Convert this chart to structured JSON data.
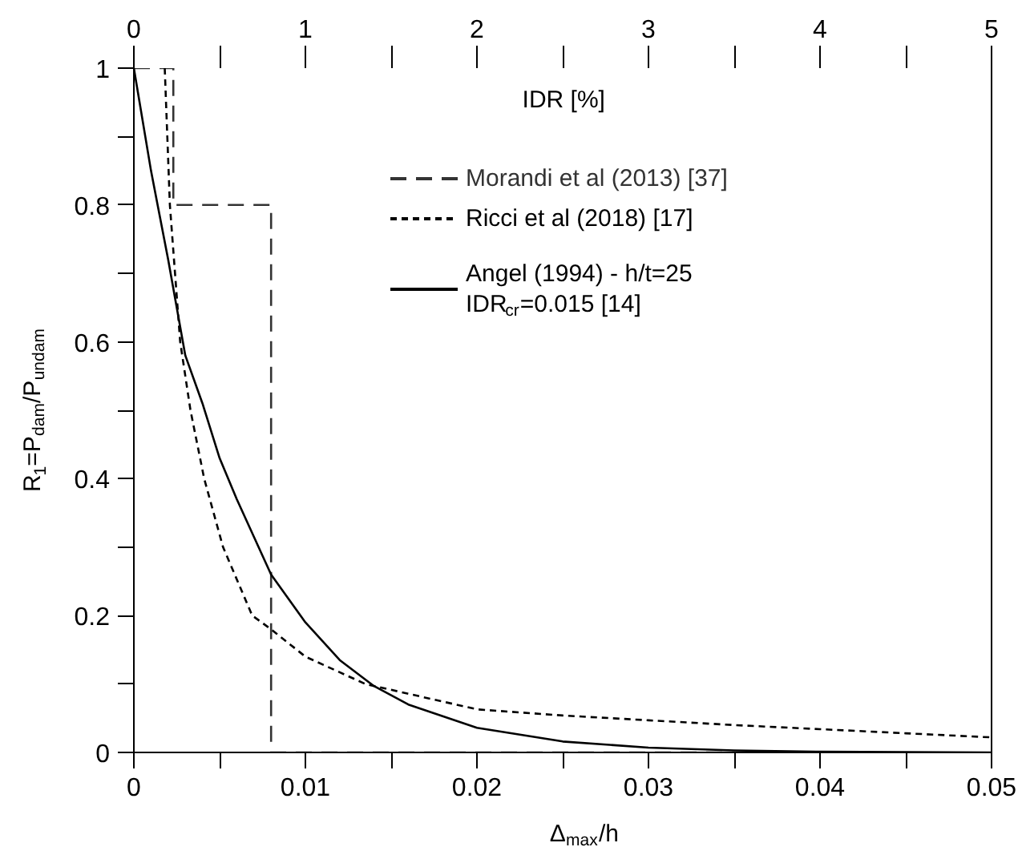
{
  "chart_data": {
    "type": "line",
    "xlabel": "Δ$_{max}$/h",
    "ylabel": "R$_{1}$=P$_{dam}$/P$_{undam}$",
    "x2label": "IDR [%]",
    "xlim": [
      0,
      0.05
    ],
    "ylim": [
      0,
      1
    ],
    "x2lim": [
      0,
      5
    ],
    "xticks": [
      0,
      {
        "value": 0.005,
        "label": null
      },
      0.01,
      {
        "value": 0.015,
        "label": null
      },
      0.02,
      {
        "value": 0.025,
        "label": null
      },
      0.03,
      {
        "value": 0.035,
        "label": null
      },
      0.04,
      {
        "value": 0.045,
        "label": null
      },
      0.05
    ],
    "yticks": [
      0,
      {
        "value": 0.1,
        "label": null
      },
      0.2,
      {
        "value": 0.3,
        "label": null
      },
      0.4,
      {
        "value": 0.5,
        "label": null
      },
      0.6,
      {
        "value": 0.7,
        "label": null
      },
      0.8,
      {
        "value": 0.9,
        "label": null
      },
      1
    ],
    "x2ticks": [
      0,
      {
        "value": 0.5,
        "label": null
      },
      1,
      {
        "value": 1.5,
        "label": null
      },
      2,
      {
        "value": 2.5,
        "label": null
      },
      3,
      {
        "value": 3.5,
        "label": null
      },
      4,
      {
        "value": 4.5,
        "label": null
      },
      5
    ],
    "grid": false,
    "legend": "top right",
    "series": [
      {
        "name": "Morandi et al (2013) [37]",
        "color": "#333333",
        "line_style": "dashed",
        "x": [
          0,
          0.0023,
          0.0023,
          0.008,
          0.008,
          0.04
        ],
        "values": [
          1,
          1,
          0.8,
          0.8,
          0,
          0
        ]
      },
      {
        "name": "Ricci et al (2018) [17]",
        "color": "#000000",
        "line_style": "dotted",
        "x": [
          0.0018,
          0.0021,
          0.0027,
          0.0033,
          0.0041,
          0.0052,
          0.0069,
          0.008,
          0.01,
          0.0135,
          0.02,
          0.025,
          0.03,
          0.035,
          0.04,
          0.045,
          0.05
        ],
        "values": [
          1,
          0.8,
          0.6,
          0.5,
          0.4,
          0.3,
          0.2,
          0.18,
          0.14,
          0.1,
          0.063,
          0.054,
          0.047,
          0.04,
          0.034,
          0.028,
          0.022
        ]
      },
      {
        "name": "Angel (1994) - h/t=25\nIDR$_{cr}$=0.015 [14]",
        "color": "#000000",
        "line_style": "solid",
        "x": [
          0,
          0.001,
          0.002,
          0.003,
          0.004,
          0.005,
          0.006,
          0.008,
          0.01,
          0.012,
          0.014,
          0.016,
          0.02,
          0.025,
          0.03,
          0.035,
          0.04,
          0.05
        ],
        "values": [
          1,
          0.85,
          0.72,
          0.58,
          0.51,
          0.43,
          0.37,
          0.26,
          0.19,
          0.135,
          0.097,
          0.07,
          0.036,
          0.016,
          0.007,
          0.003,
          0.001,
          0
        ]
      }
    ]
  }
}
